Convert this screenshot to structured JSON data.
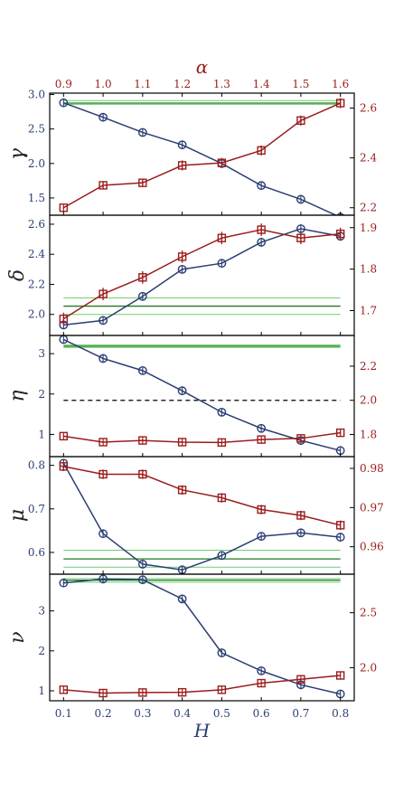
{
  "figure": {
    "bottom_axis": {
      "label": "H",
      "ticks": [
        "0.1",
        "0.2",
        "0.3",
        "0.4",
        "0.5",
        "0.6",
        "0.7",
        "0.8"
      ]
    },
    "top_axis": {
      "label": "α",
      "ticks": [
        "0.9",
        "1.0",
        "1.1",
        "1.2",
        "1.3",
        "1.4",
        "1.5",
        "1.6"
      ]
    }
  },
  "colors": {
    "blue": "#2b3f73",
    "red": "#9b1c1c",
    "green_dark": "#1e7a1e",
    "green_light": "#6ccf6c",
    "dashed": "#000000"
  },
  "chart_data": [
    {
      "type": "line",
      "ylabel": "γ",
      "x_bottom": [
        0.1,
        0.2,
        0.3,
        0.4,
        0.5,
        0.6,
        0.7,
        0.8
      ],
      "x_top": [
        0.9,
        1.0,
        1.1,
        1.2,
        1.3,
        1.4,
        1.5,
        1.6
      ],
      "ylim_left": [
        1.25,
        3.02
      ],
      "ylim_right": [
        2.17,
        2.66
      ],
      "yticks_left": [
        "1.5",
        "2.0",
        "2.5",
        "3.0"
      ],
      "yticks_right": [
        "2.2",
        "2.4",
        "2.6"
      ],
      "series": [
        {
          "axis": "left",
          "marker": "circle",
          "values": [
            2.88,
            2.67,
            2.45,
            2.27,
            2.0,
            1.68,
            1.48,
            1.22
          ]
        },
        {
          "axis": "right",
          "marker": "square",
          "values": [
            2.2,
            2.29,
            2.3,
            2.37,
            2.38,
            2.43,
            2.55,
            2.62
          ],
          "err": [
            0.005,
            0.015,
            0.015,
            0.02,
            0.02,
            0.02,
            0.02,
            0.02
          ]
        }
      ],
      "hlines": [
        {
          "axis": "right",
          "y": 2.615,
          "style": "light"
        },
        {
          "axis": "right",
          "y": 2.62,
          "style": "dark"
        },
        {
          "axis": "right",
          "y": 2.63,
          "style": "light"
        }
      ]
    },
    {
      "type": "line",
      "ylabel": "δ",
      "x_bottom": [
        0.1,
        0.2,
        0.3,
        0.4,
        0.5,
        0.6,
        0.7,
        0.8
      ],
      "x_top": [
        0.9,
        1.0,
        1.1,
        1.2,
        1.3,
        1.4,
        1.5,
        1.6
      ],
      "ylim_left": [
        1.86,
        2.66
      ],
      "ylim_right": [
        1.64,
        1.93
      ],
      "yticks_left": [
        "2.0",
        "2.2",
        "2.4",
        "2.6"
      ],
      "yticks_right": [
        "1.7",
        "1.8",
        "1.9"
      ],
      "series": [
        {
          "axis": "left",
          "marker": "circle",
          "values": [
            1.93,
            1.96,
            2.12,
            2.3,
            2.34,
            2.48,
            2.57,
            2.52
          ]
        },
        {
          "axis": "right",
          "marker": "square",
          "values": [
            1.68,
            1.74,
            1.78,
            1.83,
            1.875,
            1.895,
            1.875,
            1.885
          ],
          "err": [
            0.015,
            0.015,
            0.015,
            0.015,
            0.015,
            0.015,
            0.015,
            0.015
          ]
        }
      ],
      "hlines": [
        {
          "axis": "left",
          "y": 2.0,
          "style": "light"
        },
        {
          "axis": "left",
          "y": 2.055,
          "style": "dark"
        },
        {
          "axis": "left",
          "y": 2.11,
          "style": "light"
        }
      ]
    },
    {
      "type": "line",
      "ylabel": "η",
      "x_bottom": [
        0.1,
        0.2,
        0.3,
        0.4,
        0.5,
        0.6,
        0.7,
        0.8
      ],
      "x_top": [
        0.9,
        1.0,
        1.1,
        1.2,
        1.3,
        1.4,
        1.5,
        1.6
      ],
      "ylim_left": [
        0.45,
        3.45
      ],
      "ylim_right": [
        1.67,
        2.38
      ],
      "yticks_left": [
        "1",
        "2",
        "3"
      ],
      "yticks_right": [
        "1.8",
        "2.0",
        "2.2"
      ],
      "series": [
        {
          "axis": "left",
          "marker": "circle",
          "values": [
            3.35,
            2.88,
            2.58,
            2.08,
            1.55,
            1.15,
            0.85,
            0.6
          ]
        },
        {
          "axis": "right",
          "marker": "square",
          "values": [
            1.79,
            1.755,
            1.765,
            1.755,
            1.753,
            1.77,
            1.777,
            1.81
          ],
          "err": [
            0.005,
            0.005,
            0.005,
            0.005,
            0.005,
            0.005,
            0.005,
            0.01
          ]
        }
      ],
      "hlines": [
        {
          "axis": "right",
          "y": 2.0,
          "style": "dashed"
        },
        {
          "axis": "right",
          "y": 2.31,
          "style": "light"
        },
        {
          "axis": "right",
          "y": 2.317,
          "style": "dark"
        },
        {
          "axis": "right",
          "y": 2.325,
          "style": "light"
        }
      ]
    },
    {
      "type": "line",
      "ylabel": "μ",
      "x_bottom": [
        0.1,
        0.2,
        0.3,
        0.4,
        0.5,
        0.6,
        0.7,
        0.8
      ],
      "x_top": [
        0.9,
        1.0,
        1.1,
        1.2,
        1.3,
        1.4,
        1.5,
        1.6
      ],
      "ylim_left": [
        0.55,
        0.82
      ],
      "ylim_right": [
        0.953,
        0.983
      ],
      "yticks_left": [
        "0.6",
        "0.7",
        "0.8"
      ],
      "yticks_right": [
        "0.96",
        "0.97",
        "0.98"
      ],
      "series": [
        {
          "axis": "left",
          "marker": "circle",
          "values": [
            0.805,
            0.643,
            0.573,
            0.56,
            0.593,
            0.637,
            0.645,
            0.635
          ]
        },
        {
          "axis": "right",
          "marker": "square",
          "values": [
            0.9805,
            0.9785,
            0.9785,
            0.9745,
            0.9725,
            0.9695,
            0.968,
            0.9655
          ],
          "err": [
            0.0012,
            0.0012,
            0.0012,
            0.0012,
            0.0012,
            0.0012,
            0.0012,
            0.0012
          ]
        }
      ],
      "hlines": [
        {
          "axis": "left",
          "y": 0.566,
          "style": "light"
        },
        {
          "axis": "left",
          "y": 0.585,
          "style": "dark"
        },
        {
          "axis": "left",
          "y": 0.605,
          "style": "light"
        }
      ]
    },
    {
      "type": "line",
      "ylabel": "ν",
      "x_bottom": [
        0.1,
        0.2,
        0.3,
        0.4,
        0.5,
        0.6,
        0.7,
        0.8
      ],
      "x_top": [
        0.9,
        1.0,
        1.1,
        1.2,
        1.3,
        1.4,
        1.5,
        1.6
      ],
      "ylim_left": [
        0.75,
        3.92
      ],
      "ylim_right": [
        1.7,
        2.85
      ],
      "yticks_left": [
        "1",
        "2",
        "3"
      ],
      "yticks_right": [
        "2.0",
        "2.5"
      ],
      "series": [
        {
          "axis": "left",
          "marker": "circle",
          "values": [
            3.7,
            3.8,
            3.78,
            3.3,
            1.95,
            1.5,
            1.15,
            0.92
          ]
        },
        {
          "axis": "right",
          "marker": "square",
          "values": [
            1.8,
            1.77,
            1.775,
            1.777,
            1.8,
            1.86,
            1.895,
            1.93
          ],
          "err": [
            0.005,
            0.005,
            0.005,
            0.005,
            0.005,
            0.005,
            0.005,
            0.005
          ]
        }
      ],
      "hlines": [
        {
          "axis": "left",
          "y": 3.72,
          "style": "light"
        },
        {
          "axis": "left",
          "y": 3.77,
          "style": "dark"
        },
        {
          "axis": "left",
          "y": 3.81,
          "style": "light"
        }
      ]
    }
  ]
}
